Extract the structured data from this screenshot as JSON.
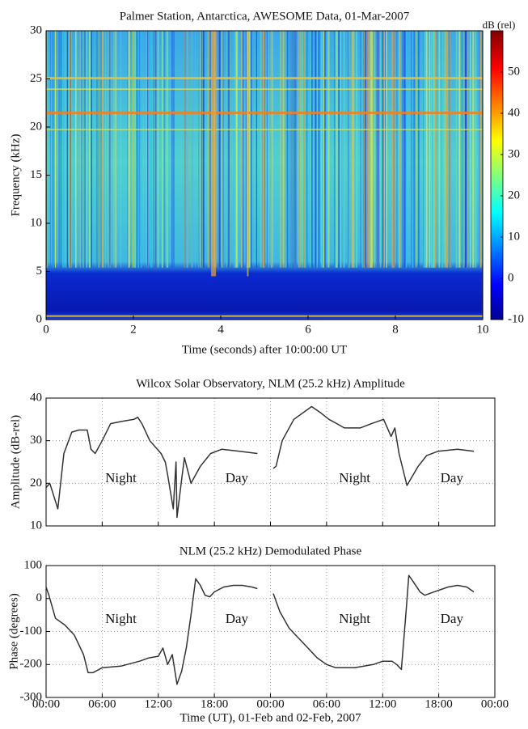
{
  "chart_data": [
    {
      "type": "spectrogram",
      "title": "Palmer Station, Antarctica, AWESOME Data, 01-Mar-2007",
      "xlabel": "Time (seconds) after 10:00:00 UT",
      "ylabel": "Frequency (kHz)",
      "xlim": [
        0,
        10
      ],
      "xticks": [
        0,
        2,
        4,
        6,
        8,
        10
      ],
      "ylim": [
        0,
        30
      ],
      "yticks": [
        0,
        5,
        10,
        15,
        20,
        25,
        30
      ],
      "colorbar_label": "dB (rel)",
      "clim": [
        -10,
        60
      ],
      "cticks": [
        -10,
        0,
        10,
        20,
        30,
        40,
        50
      ],
      "colormap": "jet"
    },
    {
      "type": "line",
      "title": "Wilcox Solar Observatory, NLM (25.2 kHz) Amplitude",
      "ylabel": "Amplitude (dB-rel)",
      "grid": true,
      "show_xtick_labels": false,
      "xlim": [
        0,
        48
      ],
      "xticks": [
        0,
        6,
        12,
        18,
        24,
        30,
        36,
        42,
        48
      ],
      "ylim": [
        10,
        40
      ],
      "yticks": [
        10,
        20,
        30,
        40
      ],
      "x": [
        0,
        0.4,
        1.25,
        1.9,
        2.75,
        3.5,
        4.4,
        4.8,
        5.25,
        6,
        6.9,
        8,
        9.4,
        9.8,
        10.25,
        11.1,
        11.9,
        12.3,
        12.75,
        13,
        13.6,
        13.9,
        14,
        14.5,
        14.8,
        15.5,
        16.5,
        17.6,
        18.8,
        20.7,
        22.6,
        23.5,
        24.3,
        24.6,
        25.25,
        26.5,
        28.4,
        29.4,
        30.25,
        31.1,
        31.9,
        33.6,
        34.8,
        36.1,
        36.9,
        37.3,
        37.75,
        38.2,
        38.6,
        39,
        39.8,
        40.7,
        41.9,
        44,
        45.75
      ],
      "series": [
        {
          "color": "#333333",
          "values": [
            19,
            20,
            14,
            27,
            32,
            32.5,
            32.5,
            28,
            27,
            30,
            34,
            34.5,
            35,
            35.5,
            34,
            30,
            28,
            27,
            25,
            22,
            14,
            25,
            12,
            21,
            26,
            20,
            24,
            27,
            28,
            27.5,
            27,
            null,
            23.5,
            24,
            30,
            35,
            38,
            36.5,
            35,
            34,
            33,
            33,
            34,
            35,
            31,
            33,
            27,
            23,
            19.5,
            21,
            24,
            26.5,
            27.5,
            28,
            27.5
          ]
        }
      ],
      "annotations": [
        {
          "text": "Night",
          "x": 8,
          "y": 21,
          "color": "#2a2ad8"
        },
        {
          "text": "Day",
          "x": 20.4,
          "y": 21,
          "color": "#f08a24"
        },
        {
          "text": "Night",
          "x": 33,
          "y": 21,
          "color": "#2a2ad8"
        },
        {
          "text": "Day",
          "x": 43.4,
          "y": 21,
          "color": "#f08a24"
        }
      ]
    },
    {
      "type": "line",
      "title": "NLM (25.2 kHz) Demodulated Phase",
      "ylabel": "Phase (degrees)",
      "xlabel": "Time (UT), 01-Feb and 02-Feb, 2007",
      "grid": true,
      "show_xtick_labels": true,
      "xlim": [
        0,
        48
      ],
      "xticks": [
        {
          "value": 0,
          "label": "00:00"
        },
        {
          "value": 6,
          "label": "06:00"
        },
        {
          "value": 12,
          "label": "12:00"
        },
        {
          "value": 18,
          "label": "18:00"
        },
        {
          "value": 24,
          "label": "00:00"
        },
        {
          "value": 30,
          "label": "06:00"
        },
        {
          "value": 36,
          "label": "12:00"
        },
        {
          "value": 42,
          "label": "18:00"
        },
        {
          "value": 48,
          "label": "00:00"
        }
      ],
      "ylim": [
        -300,
        100
      ],
      "yticks": [
        -300,
        -200,
        -100,
        0,
        100
      ],
      "x": [
        0,
        0.3,
        1,
        2,
        3,
        4,
        4.5,
        5,
        6,
        8,
        10,
        11,
        12,
        12.5,
        13,
        13.5,
        14,
        14.5,
        15,
        15.5,
        16,
        16.5,
        17,
        17.5,
        18,
        19,
        20,
        21,
        22,
        22.6,
        23.5,
        24.3,
        25,
        26,
        27,
        28,
        29,
        30,
        31,
        33,
        35,
        36,
        37,
        37.5,
        38,
        38.5,
        38.8,
        39.3,
        40,
        40.5,
        41.5,
        43,
        44,
        45,
        45.75
      ],
      "series": [
        {
          "color": "#333333",
          "values": [
            35,
            10,
            -60,
            -80,
            -110,
            -170,
            -225,
            -225,
            -210,
            -205,
            -190,
            -180,
            -175,
            -150,
            -200,
            -170,
            -260,
            -220,
            -150,
            -50,
            60,
            40,
            10,
            5,
            20,
            35,
            40,
            40,
            35,
            30,
            null,
            15,
            -40,
            -90,
            -120,
            -150,
            -180,
            -200,
            -210,
            -210,
            -200,
            -190,
            -190,
            -200,
            -215,
            -40,
            70,
            50,
            20,
            10,
            20,
            35,
            40,
            35,
            20
          ]
        }
      ],
      "annotations": [
        {
          "text": "Night",
          "x": 8,
          "y": -65,
          "color": "#2a2ad8"
        },
        {
          "text": "Day",
          "x": 20.4,
          "y": -65,
          "color": "#f08a24"
        },
        {
          "text": "Night",
          "x": 33,
          "y": -65,
          "color": "#2a2ad8"
        },
        {
          "text": "Day",
          "x": 43.4,
          "y": -65,
          "color": "#f08a24"
        }
      ]
    }
  ]
}
